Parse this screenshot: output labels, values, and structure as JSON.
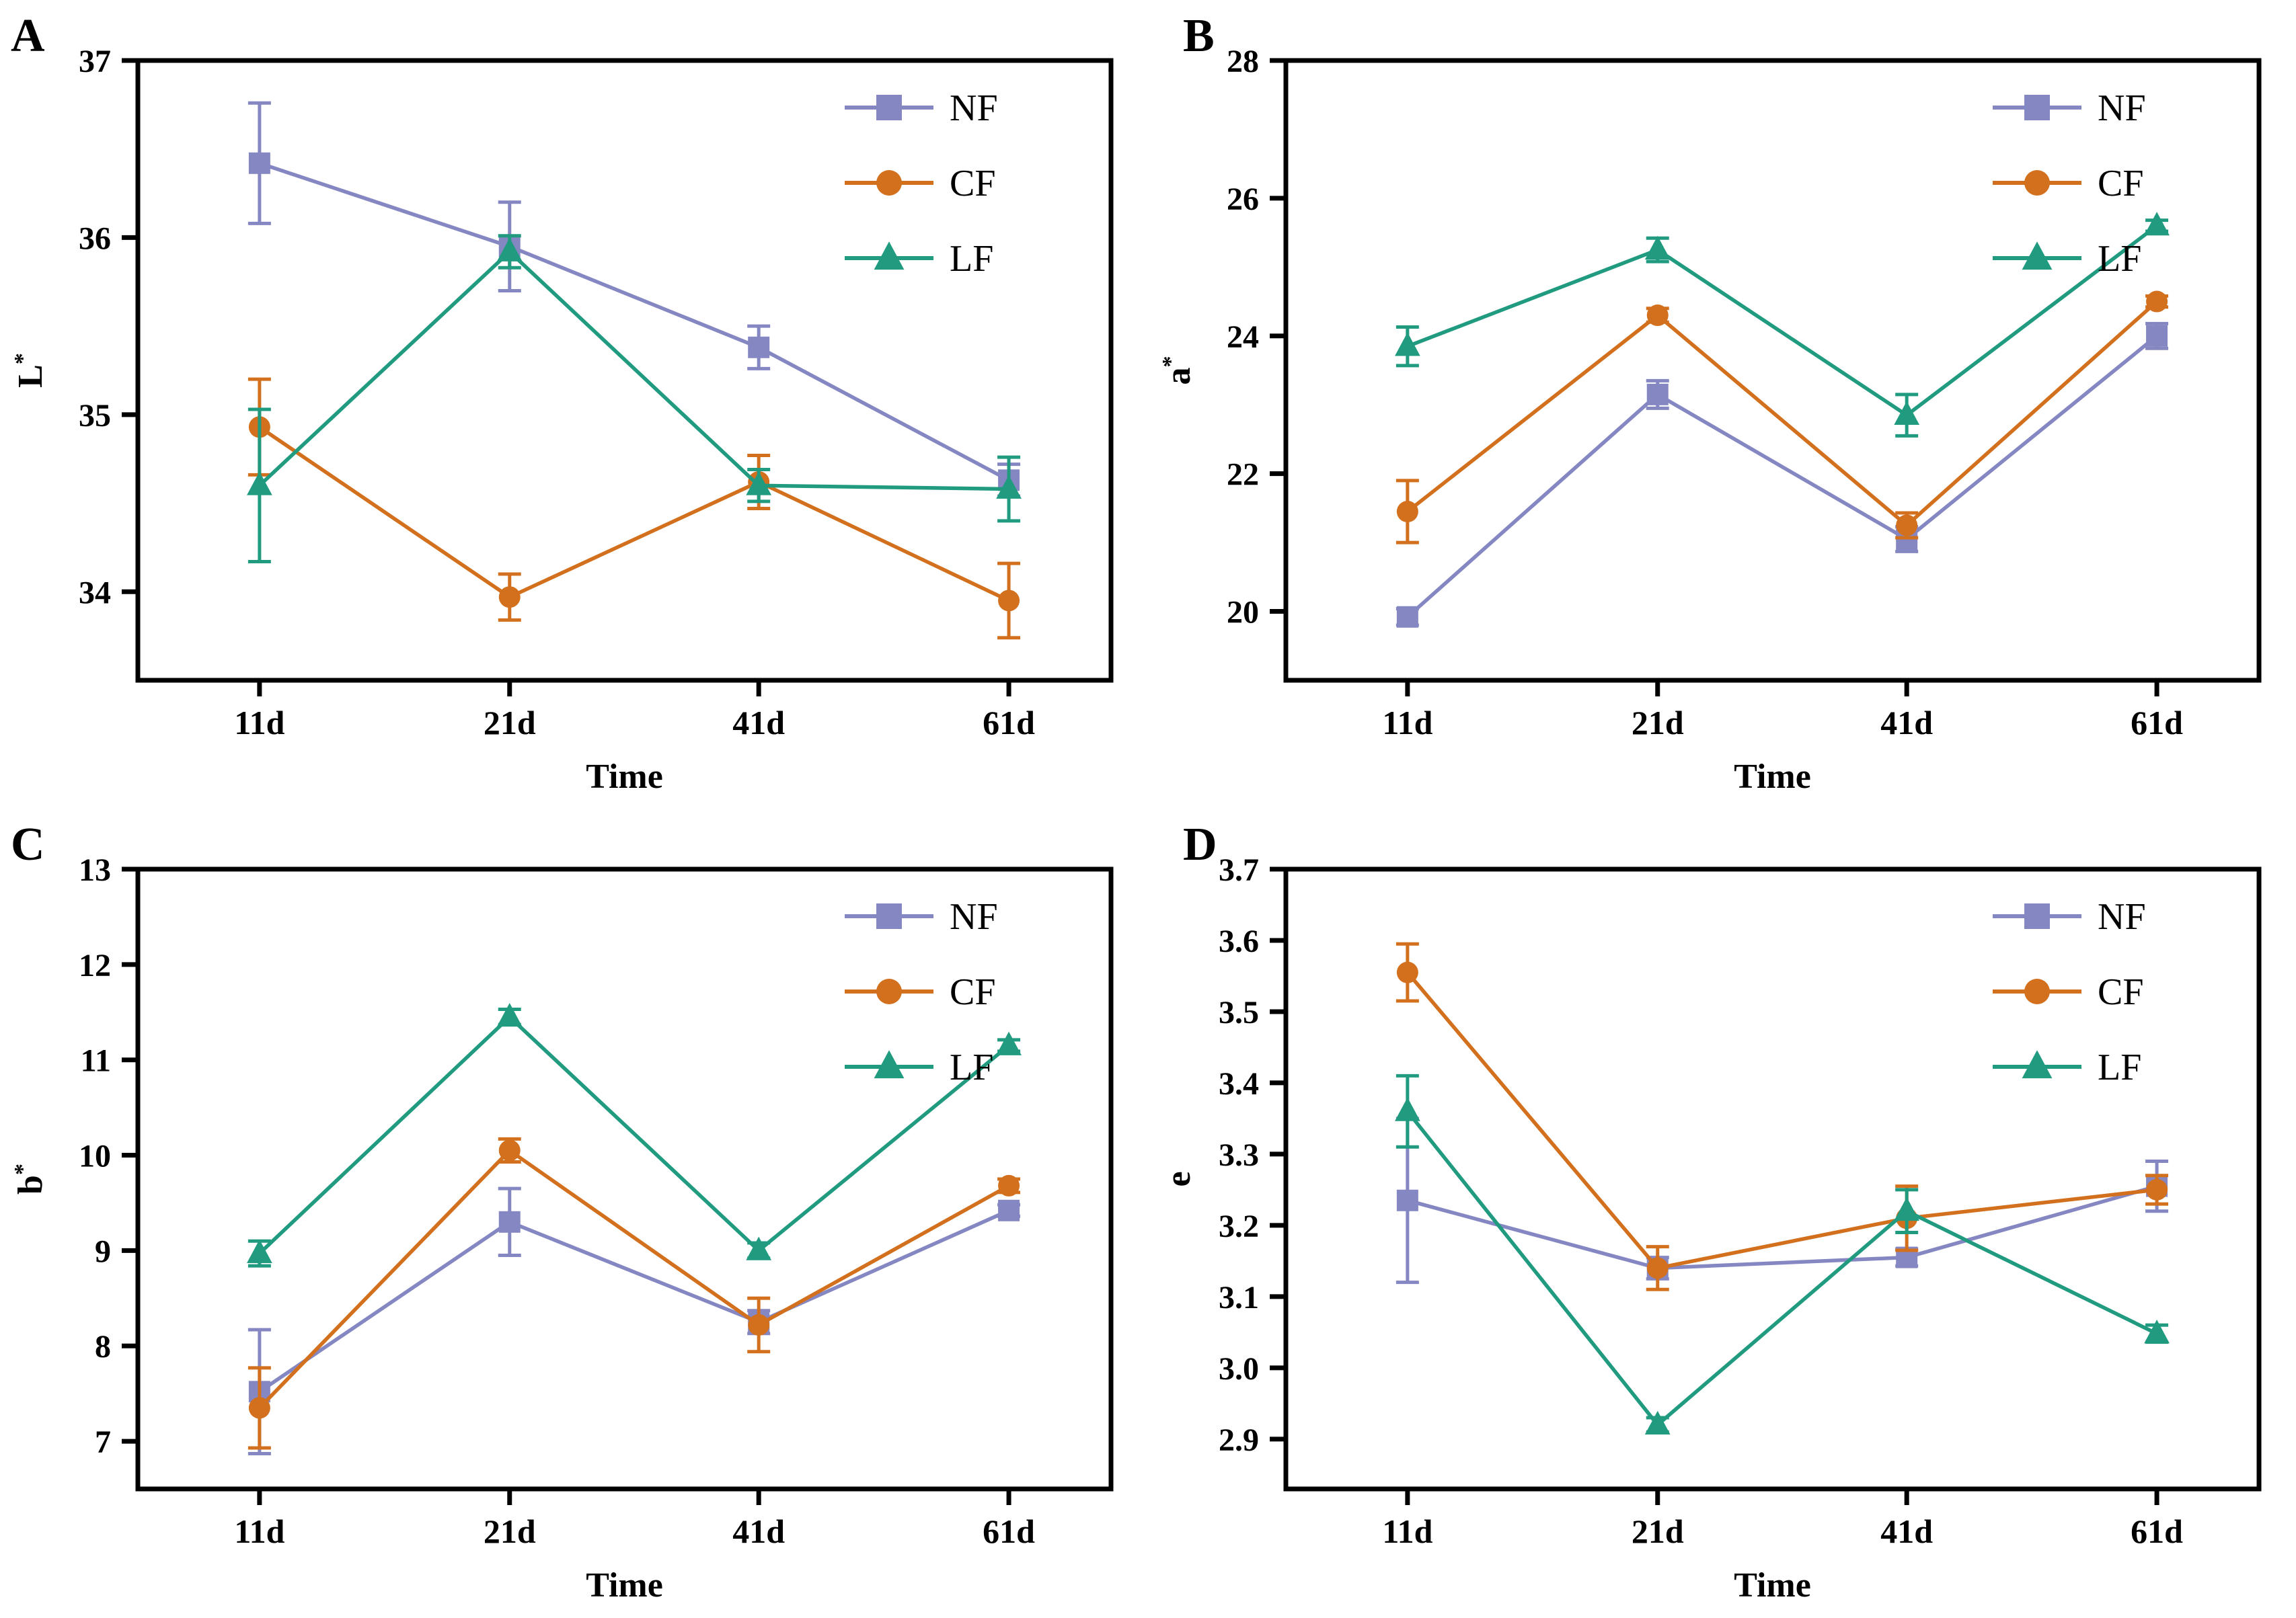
{
  "figure": {
    "background": "#ffffff",
    "axis_color": "#000000",
    "text_color": "#000000"
  },
  "legend": {
    "position": "top-right",
    "items": [
      {
        "label": "NF",
        "marker": "square",
        "color": "#8587c2"
      },
      {
        "label": "CF",
        "marker": "circle",
        "color": "#d2701e"
      },
      {
        "label": "LF",
        "marker": "triangle",
        "color": "#219b80"
      }
    ]
  },
  "chart_data": [
    {
      "type": "line",
      "panel_label": "A",
      "ylabel": "L",
      "ylabel_superscript": "*",
      "xlabel": "Time",
      "categories": [
        "11d",
        "21d",
        "41d",
        "61d"
      ],
      "ylim": [
        33.5,
        37.0
      ],
      "yticks": [
        34,
        35,
        36,
        37
      ],
      "ytick_labels": [
        "34",
        "35",
        "36",
        "37"
      ],
      "grid": false,
      "legend_position": "top-right",
      "series": [
        {
          "name": "NF",
          "marker": "square",
          "color": "#8587c2",
          "values": [
            36.42,
            35.95,
            35.38,
            34.63
          ],
          "errors": [
            0.34,
            0.25,
            0.12,
            0.09
          ]
        },
        {
          "name": "CF",
          "marker": "circle",
          "color": "#d2701e",
          "values": [
            34.93,
            33.97,
            34.62,
            33.95
          ],
          "errors": [
            0.27,
            0.13,
            0.15,
            0.21
          ]
        },
        {
          "name": "LF",
          "marker": "triangle",
          "color": "#219b80",
          "values": [
            34.6,
            35.92,
            34.6,
            34.58
          ],
          "errors": [
            0.43,
            0.09,
            0.09,
            0.18
          ]
        }
      ]
    },
    {
      "type": "line",
      "panel_label": "B",
      "ylabel": "a",
      "ylabel_superscript": "*",
      "xlabel": "Time",
      "categories": [
        "11d",
        "21d",
        "41d",
        "61d"
      ],
      "ylim": [
        19.0,
        28.0
      ],
      "yticks": [
        20,
        22,
        24,
        26,
        28
      ],
      "ytick_labels": [
        "20",
        "22",
        "24",
        "26",
        "28"
      ],
      "grid": false,
      "legend_position": "top-right",
      "series": [
        {
          "name": "NF",
          "marker": "square",
          "color": "#8587c2",
          "values": [
            19.92,
            23.15,
            21.05,
            24.0
          ],
          "errors": [
            0.12,
            0.2,
            0.18,
            0.18
          ]
        },
        {
          "name": "CF",
          "marker": "circle",
          "color": "#d2701e",
          "values": [
            21.45,
            24.3,
            21.25,
            24.5
          ],
          "errors": [
            0.45,
            0.1,
            0.18,
            0.08
          ]
        },
        {
          "name": "LF",
          "marker": "triangle",
          "color": "#219b80",
          "values": [
            23.85,
            25.25,
            22.85,
            25.6
          ],
          "errors": [
            0.28,
            0.17,
            0.3,
            0.08
          ]
        }
      ]
    },
    {
      "type": "line",
      "panel_label": "C",
      "ylabel": "b",
      "ylabel_superscript": "*",
      "xlabel": "Time",
      "categories": [
        "11d",
        "21d",
        "41d",
        "61d"
      ],
      "ylim": [
        6.5,
        13.0
      ],
      "yticks": [
        7,
        8,
        9,
        10,
        11,
        12,
        13
      ],
      "ytick_labels": [
        "7",
        "8",
        "9",
        "10",
        "11",
        "12",
        "13"
      ],
      "grid": false,
      "legend_position": "top-right",
      "series": [
        {
          "name": "NF",
          "marker": "square",
          "color": "#8587c2",
          "values": [
            7.52,
            9.3,
            8.25,
            9.42
          ],
          "errors": [
            0.65,
            0.35,
            0.12,
            0.06
          ]
        },
        {
          "name": "CF",
          "marker": "circle",
          "color": "#d2701e",
          "values": [
            7.35,
            10.05,
            8.22,
            9.68
          ],
          "errors": [
            0.42,
            0.12,
            0.28,
            0.07
          ]
        },
        {
          "name": "LF",
          "marker": "triangle",
          "color": "#219b80",
          "values": [
            8.97,
            11.45,
            9.0,
            11.15
          ],
          "errors": [
            0.13,
            0.08,
            0.08,
            0.06
          ]
        }
      ]
    },
    {
      "type": "line",
      "panel_label": "D",
      "ylabel": "e",
      "ylabel_superscript": "",
      "xlabel": "Time",
      "categories": [
        "11d",
        "21d",
        "41d",
        "61d"
      ],
      "ylim": [
        2.83,
        3.7
      ],
      "yticks": [
        2.9,
        3.0,
        3.1,
        3.2,
        3.3,
        3.4,
        3.5,
        3.6,
        3.7
      ],
      "ytick_labels": [
        "2.9",
        "3.0",
        "3.1",
        "3.2",
        "3.3",
        "3.4",
        "3.5",
        "3.6",
        "3.7"
      ],
      "grid": false,
      "legend_position": "top-right",
      "series": [
        {
          "name": "NF",
          "marker": "square",
          "color": "#8587c2",
          "values": [
            3.235,
            3.14,
            3.155,
            3.255
          ],
          "errors": [
            0.115,
            0.015,
            0.012,
            0.035
          ]
        },
        {
          "name": "CF",
          "marker": "circle",
          "color": "#d2701e",
          "values": [
            3.555,
            3.14,
            3.21,
            3.25
          ],
          "errors": [
            0.04,
            0.03,
            0.045,
            0.02
          ]
        },
        {
          "name": "LF",
          "marker": "triangle",
          "color": "#219b80",
          "values": [
            3.36,
            2.92,
            3.22,
            3.048
          ],
          "errors": [
            0.05,
            0.01,
            0.03,
            0.012
          ]
        }
      ]
    }
  ]
}
